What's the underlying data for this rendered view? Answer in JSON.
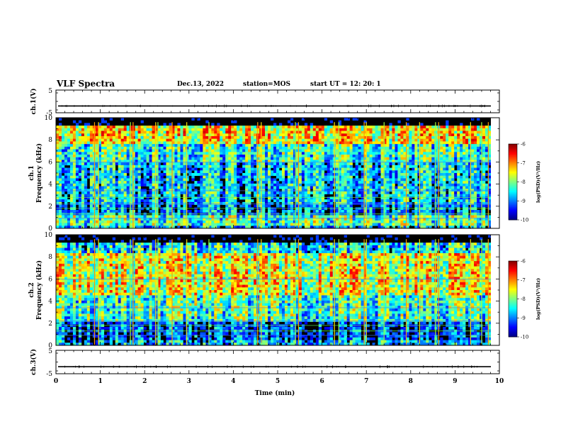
{
  "header": {
    "title": "VLF Spectra",
    "date": "Dec.13, 2022",
    "station": "station=MOS",
    "start": "start  UT  =   12: 20: 1"
  },
  "chart_data": [
    {
      "type": "line",
      "ylabel": "ch.1(V)",
      "ylim": [
        -5,
        5
      ],
      "yticks": [
        "5",
        "-5"
      ],
      "xlim": [
        0,
        10
      ],
      "series": [
        {
          "values": [
            -2,
            -2
          ]
        }
      ]
    },
    {
      "type": "heatmap",
      "ylabel": "ch.1\nFrequency (kHz)",
      "ylim": [
        0,
        10
      ],
      "yticks": [
        0,
        2,
        4,
        6,
        8,
        10
      ],
      "xlim": [
        0,
        10
      ],
      "colorbar": {
        "label": "log(PSD)(V²/Hz)",
        "range": [
          -10,
          -6
        ],
        "ticks": [
          "-6",
          "-7",
          "-8",
          "-9",
          "-10"
        ]
      }
    },
    {
      "type": "heatmap",
      "ylabel": "ch.2\nFrequency (kHz)",
      "ylim": [
        0,
        10
      ],
      "yticks": [
        0,
        2,
        4,
        6,
        8,
        10
      ],
      "xlim": [
        0,
        10
      ],
      "colorbar": {
        "label": "log(PSD)(V²/Hz)",
        "range": [
          -10,
          -6
        ],
        "ticks": [
          "-6",
          "-7",
          "-8",
          "-9",
          "-10"
        ]
      }
    },
    {
      "type": "line",
      "ylabel": "ch.3(V)",
      "ylim": [
        -5,
        5
      ],
      "yticks": [
        "5",
        "-5"
      ],
      "xlim": [
        0,
        10
      ],
      "xlabel": "Time  (min)",
      "xticks": [
        "0",
        "1",
        "2",
        "3",
        "4",
        "5",
        "6",
        "7",
        "8",
        "9",
        "10"
      ],
      "series": [
        {
          "values": [
            -2,
            -2
          ]
        }
      ]
    }
  ]
}
